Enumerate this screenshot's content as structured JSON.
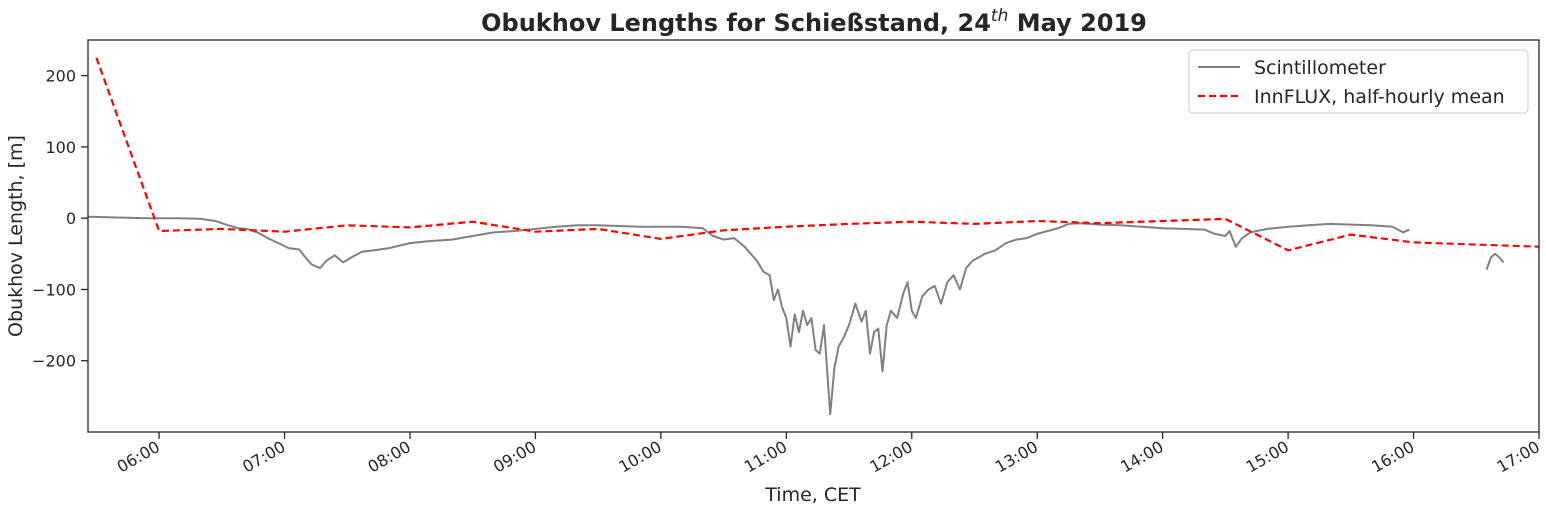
{
  "chart_data": {
    "type": "line",
    "title": "Obukhov Lengths for Schießstand, 24",
    "title_superscript": "th",
    "title_suffix": " May 2019",
    "xlabel": "Time, CET",
    "ylabel": "Obukhov Length, [m]",
    "xlim": [
      "05:26",
      "17:00"
    ],
    "ylim": [
      -300,
      250
    ],
    "x_ticks": [
      "06:00",
      "07:00",
      "08:00",
      "09:00",
      "10:00",
      "11:00",
      "12:00",
      "13:00",
      "14:00",
      "15:00",
      "16:00",
      "17:00"
    ],
    "y_ticks": [
      200,
      100,
      0,
      -100,
      -200
    ],
    "y_tick_labels": [
      "200",
      "100",
      "0",
      "−100",
      "−200"
    ],
    "grid": false,
    "legend_position": "top-right",
    "series": [
      {
        "name": "Scintillometer",
        "color": "#808080",
        "style": "solid",
        "segments": [
          [
            [
              "05:26",
              2
            ],
            [
              "05:40",
              1
            ],
            [
              "05:55",
              0
            ],
            [
              "06:10",
              0
            ],
            [
              "06:20",
              -1
            ],
            [
              "06:27",
              -4
            ],
            [
              "06:33",
              -10
            ],
            [
              "06:38",
              -14
            ],
            [
              "06:42",
              -15
            ],
            [
              "06:47",
              -20
            ],
            [
              "06:52",
              -28
            ],
            [
              "06:57",
              -35
            ],
            [
              "07:02",
              -42
            ],
            [
              "07:07",
              -44
            ],
            [
              "07:10",
              -55
            ],
            [
              "07:13",
              -65
            ],
            [
              "07:17",
              -70
            ],
            [
              "07:20",
              -60
            ],
            [
              "07:24",
              -52
            ],
            [
              "07:28",
              -62
            ],
            [
              "07:32",
              -55
            ],
            [
              "07:37",
              -47
            ],
            [
              "07:43",
              -45
            ],
            [
              "07:50",
              -42
            ],
            [
              "08:00",
              -35
            ],
            [
              "08:10",
              -32
            ],
            [
              "08:20",
              -30
            ],
            [
              "08:30",
              -25
            ],
            [
              "08:40",
              -20
            ],
            [
              "08:50",
              -18
            ],
            [
              "09:00",
              -15
            ],
            [
              "09:10",
              -12
            ],
            [
              "09:20",
              -10
            ],
            [
              "09:30",
              -10
            ],
            [
              "09:40",
              -11
            ],
            [
              "09:50",
              -12
            ],
            [
              "10:00",
              -12
            ],
            [
              "10:10",
              -12
            ],
            [
              "10:20",
              -14
            ],
            [
              "10:25",
              -25
            ],
            [
              "10:30",
              -30
            ],
            [
              "10:35",
              -28
            ],
            [
              "10:40",
              -40
            ],
            [
              "10:43",
              -50
            ],
            [
              "10:46",
              -60
            ],
            [
              "10:49",
              -75
            ],
            [
              "10:52",
              -80
            ],
            [
              "10:54",
              -115
            ],
            [
              "10:56",
              -100
            ],
            [
              "10:58",
              -125
            ],
            [
              "11:00",
              -140
            ],
            [
              "11:02",
              -180
            ],
            [
              "11:04",
              -135
            ],
            [
              "11:06",
              -160
            ],
            [
              "11:08",
              -130
            ],
            [
              "11:10",
              -150
            ],
            [
              "11:12",
              -140
            ],
            [
              "11:14",
              -185
            ],
            [
              "11:16",
              -190
            ],
            [
              "11:18",
              -150
            ],
            [
              "11:21",
              -275
            ],
            [
              "11:23",
              -210
            ],
            [
              "11:25",
              -180
            ],
            [
              "11:27",
              -170
            ],
            [
              "11:30",
              -150
            ],
            [
              "11:33",
              -120
            ],
            [
              "11:36",
              -145
            ],
            [
              "11:38",
              -130
            ],
            [
              "11:40",
              -190
            ],
            [
              "11:42",
              -160
            ],
            [
              "11:44",
              -155
            ],
            [
              "11:46",
              -215
            ],
            [
              "11:48",
              -150
            ],
            [
              "11:50",
              -130
            ],
            [
              "11:53",
              -140
            ],
            [
              "11:56",
              -105
            ],
            [
              "11:58",
              -90
            ],
            [
              "12:00",
              -130
            ],
            [
              "12:02",
              -140
            ],
            [
              "12:05",
              -110
            ],
            [
              "12:08",
              -100
            ],
            [
              "12:11",
              -95
            ],
            [
              "12:14",
              -120
            ],
            [
              "12:17",
              -90
            ],
            [
              "12:20",
              -80
            ],
            [
              "12:23",
              -100
            ],
            [
              "12:26",
              -70
            ],
            [
              "12:29",
              -60
            ],
            [
              "12:32",
              -55
            ],
            [
              "12:35",
              -50
            ],
            [
              "12:40",
              -45
            ],
            [
              "12:45",
              -35
            ],
            [
              "12:50",
              -30
            ],
            [
              "12:55",
              -28
            ],
            [
              "13:00",
              -22
            ],
            [
              "13:05",
              -18
            ],
            [
              "13:10",
              -14
            ],
            [
              "13:15",
              -8
            ],
            [
              "13:20",
              -7
            ],
            [
              "13:25",
              -8
            ],
            [
              "13:30",
              -9
            ],
            [
              "13:40",
              -10
            ],
            [
              "13:50",
              -12
            ],
            [
              "14:00",
              -14
            ],
            [
              "14:10",
              -15
            ],
            [
              "14:20",
              -16
            ],
            [
              "14:25",
              -22
            ],
            [
              "14:30",
              -25
            ],
            [
              "14:32",
              -18
            ],
            [
              "14:35",
              -40
            ],
            [
              "14:38",
              -28
            ],
            [
              "14:42",
              -20
            ],
            [
              "14:50",
              -15
            ],
            [
              "15:00",
              -12
            ],
            [
              "15:10",
              -10
            ],
            [
              "15:20",
              -8
            ],
            [
              "15:30",
              -9
            ],
            [
              "15:40",
              -10
            ],
            [
              "15:50",
              -12
            ],
            [
              "15:55",
              -20
            ],
            [
              "15:58",
              -16
            ]
          ],
          [
            [
              "16:35",
              -72
            ],
            [
              "16:37",
              -55
            ],
            [
              "16:39",
              -50
            ],
            [
              "16:41",
              -55
            ],
            [
              "16:43",
              -62
            ]
          ]
        ]
      },
      {
        "name": "InnFLUX, half-hourly mean",
        "color": "#ff0000",
        "style": "dashed",
        "segments": [
          [
            [
              "05:30",
              225
            ],
            [
              "06:00",
              -18
            ],
            [
              "06:30",
              -15
            ],
            [
              "07:00",
              -19
            ],
            [
              "07:30",
              -10
            ],
            [
              "08:00",
              -13
            ],
            [
              "08:30",
              -5
            ],
            [
              "09:00",
              -19
            ],
            [
              "09:30",
              -15
            ],
            [
              "10:00",
              -29
            ],
            [
              "10:30",
              -17
            ],
            [
              "11:00",
              -12
            ],
            [
              "11:30",
              -8
            ],
            [
              "12:00",
              -5
            ],
            [
              "12:30",
              -8
            ],
            [
              "13:00",
              -4
            ],
            [
              "13:30",
              -7
            ],
            [
              "14:00",
              -4
            ],
            [
              "14:30",
              -1
            ],
            [
              "15:00",
              -45
            ],
            [
              "15:30",
              -23
            ],
            [
              "16:00",
              -34
            ],
            [
              "16:30",
              -37
            ],
            [
              "17:00",
              -40
            ]
          ]
        ]
      }
    ]
  }
}
